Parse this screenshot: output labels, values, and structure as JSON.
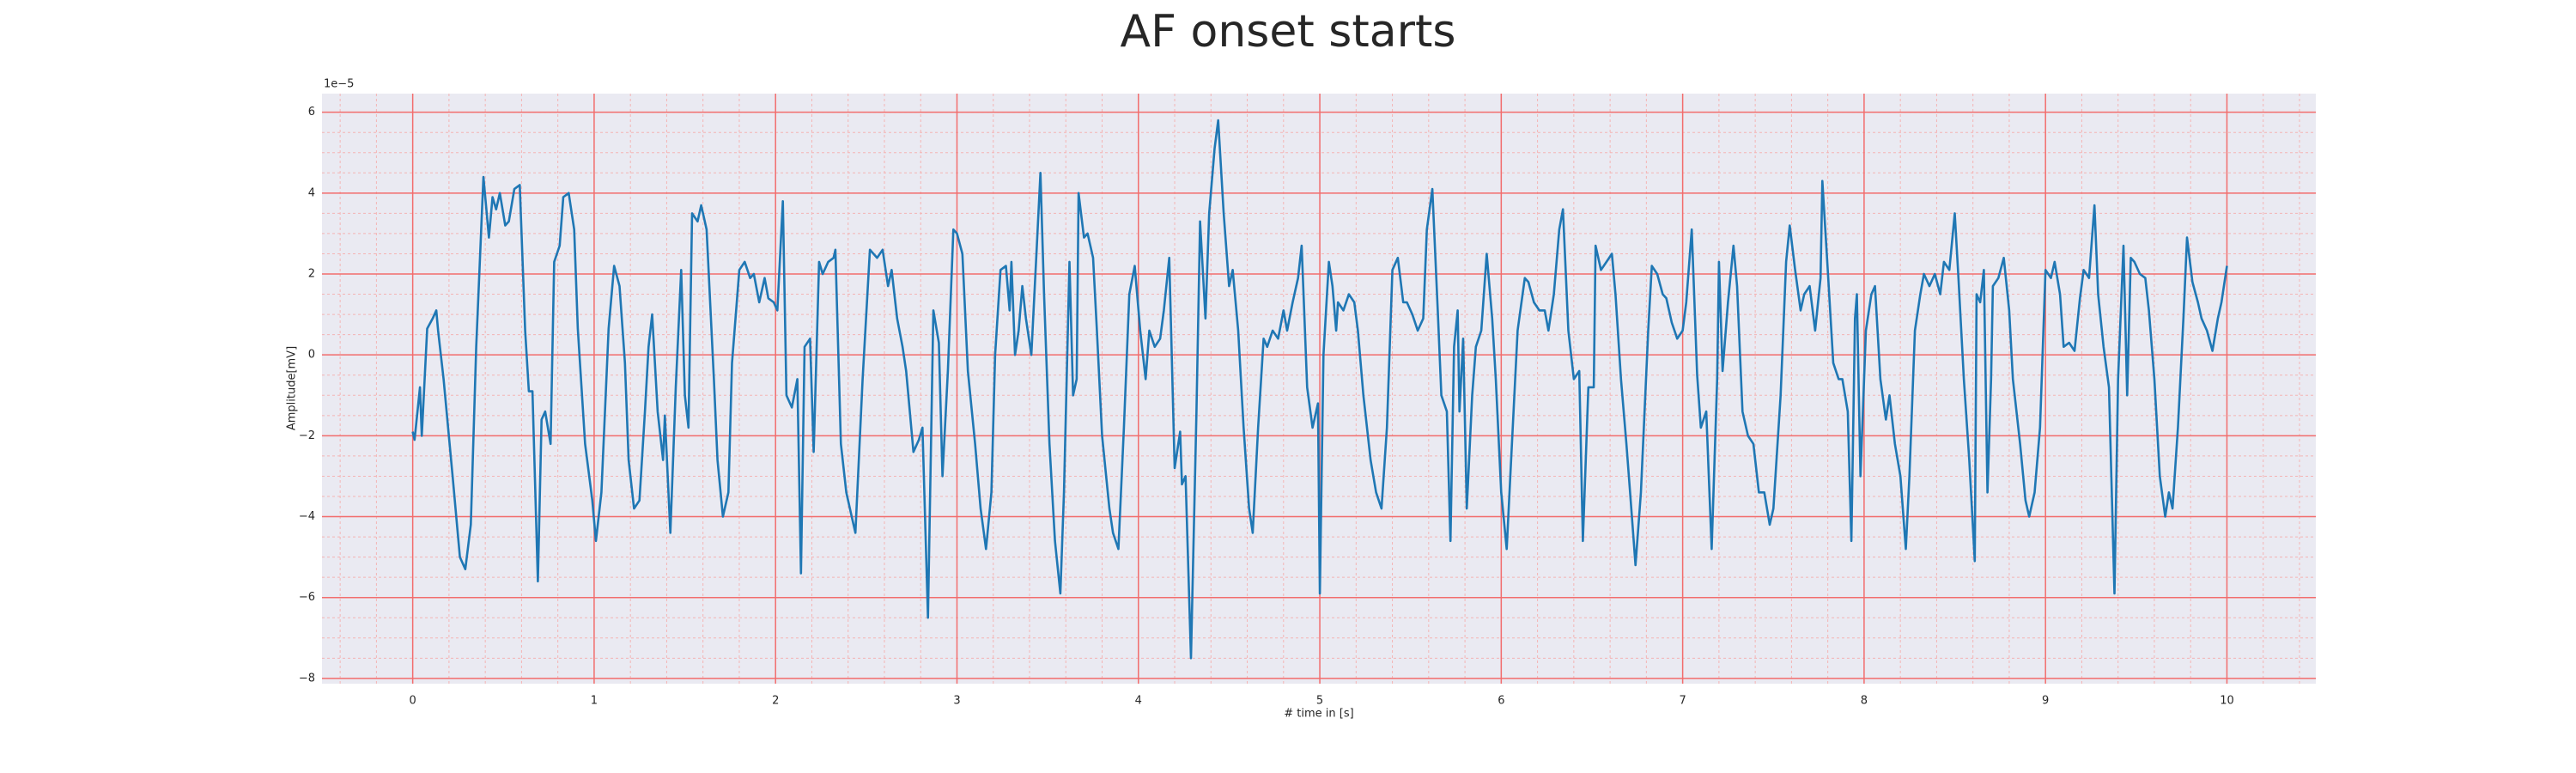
{
  "chart_data": {
    "type": "line",
    "title": "AF onset starts",
    "xlabel": "# time in [s]",
    "ylabel": "Amplitude[mV]",
    "y_offset_text": "1e−5",
    "color": "#1f77b4",
    "grid": true,
    "minor_grid": true,
    "xlim": [
      -0.5,
      10.49
    ],
    "ylim": [
      -8.13,
      6.46
    ],
    "xticks": [
      0,
      1,
      2,
      3,
      4,
      5,
      6,
      7,
      8,
      9,
      10
    ],
    "yticks": [
      {
        "value": -8,
        "label": "−8"
      },
      {
        "value": -6,
        "label": "−6"
      },
      {
        "value": -4,
        "label": "−4"
      },
      {
        "value": -2,
        "label": "−2"
      },
      0,
      2,
      4,
      6
    ],
    "x": [
      0,
      0.01,
      0.04,
      0.05,
      0.08,
      0.11,
      0.13,
      0.14,
      0.17,
      0.22,
      0.26,
      0.29,
      0.32,
      0.35,
      0.39,
      0.42,
      0.44,
      0.46,
      0.48,
      0.51,
      0.53,
      0.56,
      0.59,
      0.62,
      0.64,
      0.66,
      0.69,
      0.71,
      0.73,
      0.76,
      0.78,
      0.81,
      0.83,
      0.86,
      0.89,
      0.91,
      0.95,
      0.99,
      1.01,
      1.04,
      1.08,
      1.11,
      1.14,
      1.17,
      1.19,
      1.22,
      1.25,
      1.28,
      1.3,
      1.32,
      1.35,
      1.38,
      1.39,
      1.42,
      1.45,
      1.48,
      1.5,
      1.52,
      1.54,
      1.57,
      1.59,
      1.62,
      1.66,
      1.68,
      1.71,
      1.74,
      1.76,
      1.8,
      1.83,
      1.86,
      1.88,
      1.91,
      1.94,
      1.96,
      1.99,
      2.01,
      2.04,
      2.06,
      2.09,
      2.12,
      2.14,
      2.16,
      2.19,
      2.21,
      2.24,
      2.26,
      2.29,
      2.32,
      2.33,
      2.36,
      2.39,
      2.42,
      2.44,
      2.48,
      2.52,
      2.56,
      2.59,
      2.62,
      2.64,
      2.67,
      2.7,
      2.72,
      2.76,
      2.79,
      2.81,
      2.84,
      2.87,
      2.9,
      2.92,
      2.95,
      2.98,
      3.0,
      3.03,
      3.06,
      3.1,
      3.13,
      3.16,
      3.19,
      3.21,
      3.24,
      3.27,
      3.29,
      3.3,
      3.32,
      3.34,
      3.36,
      3.38,
      3.41,
      3.44,
      3.46,
      3.48,
      3.51,
      3.54,
      3.57,
      3.59,
      3.62,
      3.64,
      3.66,
      3.67,
      3.7,
      3.72,
      3.75,
      3.77,
      3.8,
      3.84,
      3.86,
      3.89,
      3.92,
      3.95,
      3.98,
      4.01,
      4.04,
      4.06,
      4.09,
      4.12,
      4.14,
      4.17,
      4.2,
      4.23,
      4.24,
      4.26,
      4.29,
      4.32,
      4.34,
      4.37,
      4.39,
      4.42,
      4.44,
      4.47,
      4.5,
      4.52,
      4.55,
      4.58,
      4.61,
      4.63,
      4.66,
      4.69,
      4.71,
      4.74,
      4.77,
      4.8,
      4.82,
      4.85,
      4.88,
      4.9,
      4.93,
      4.96,
      4.99,
      5.0,
      5.02,
      5.05,
      5.07,
      5.09,
      5.1,
      5.13,
      5.16,
      5.19,
      5.21,
      5.24,
      5.28,
      5.31,
      5.34,
      5.37,
      5.4,
      5.43,
      5.46,
      5.48,
      5.51,
      5.54,
      5.57,
      5.59,
      5.62,
      5.65,
      5.67,
      5.7,
      5.72,
      5.74,
      5.76,
      5.77,
      5.79,
      5.81,
      5.84,
      5.86,
      5.89,
      5.92,
      5.95,
      5.97,
      6.0,
      6.03,
      6.05,
      6.09,
      6.13,
      6.15,
      6.18,
      6.21,
      6.24,
      6.26,
      6.29,
      6.32,
      6.34,
      6.37,
      6.4,
      6.43,
      6.45,
      6.48,
      6.51,
      6.52,
      6.55,
      6.58,
      6.61,
      6.63,
      6.66,
      6.69,
      6.71,
      6.74,
      6.77,
      6.81,
      6.83,
      6.86,
      6.89,
      6.91,
      6.94,
      6.97,
      7.0,
      7.02,
      7.05,
      7.08,
      7.1,
      7.13,
      7.16,
      7.19,
      7.2,
      7.22,
      7.25,
      7.28,
      7.3,
      7.33,
      7.36,
      7.39,
      7.42,
      7.45,
      7.48,
      7.5,
      7.54,
      7.57,
      7.59,
      7.62,
      7.65,
      7.67,
      7.7,
      7.73,
      7.76,
      7.77,
      7.8,
      7.83,
      7.86,
      7.88,
      7.91,
      7.93,
      7.95,
      7.96,
      7.98,
      8.01,
      8.04,
      8.06,
      8.09,
      8.12,
      8.14,
      8.17,
      8.2,
      8.23,
      8.25,
      8.28,
      8.31,
      8.33,
      8.36,
      8.39,
      8.42,
      8.44,
      8.47,
      8.5,
      8.52,
      8.55,
      8.58,
      8.61,
      8.62,
      8.64,
      8.66,
      8.68,
      8.7,
      8.71,
      8.74,
      8.77,
      8.8,
      8.82,
      8.86,
      8.89,
      8.91,
      8.94,
      8.97,
      9.0,
      9.03,
      9.05,
      9.08,
      9.1,
      9.13,
      9.16,
      9.19,
      9.21,
      9.24,
      9.27,
      9.29,
      9.32,
      9.35,
      9.38,
      9.4,
      9.43,
      9.45,
      9.47,
      9.49,
      9.52,
      9.55,
      9.57,
      9.6,
      9.63,
      9.66,
      9.68,
      9.7,
      9.73,
      9.76,
      9.78,
      9.81,
      9.84,
      9.86,
      9.89,
      9.92,
      9.95,
      9.97,
      10.0
    ],
    "values": [
      -1.9,
      -2.1,
      -0.8,
      -2.0,
      0.65,
      0.9,
      1.1,
      0.6,
      -0.6,
      -3.0,
      -5.0,
      -5.3,
      -4.2,
      0.2,
      4.4,
      2.9,
      3.9,
      3.6,
      4.0,
      3.2,
      3.3,
      4.1,
      4.2,
      0.6,
      -0.9,
      -0.9,
      -5.6,
      -1.6,
      -1.4,
      -2.2,
      2.3,
      2.7,
      3.9,
      4.0,
      3.1,
      0.65,
      -2.2,
      -3.6,
      -4.6,
      -3.4,
      0.65,
      2.2,
      1.7,
      -0.2,
      -2.6,
      -3.8,
      -3.6,
      -1.4,
      0.2,
      1.0,
      -1.4,
      -2.6,
      -1.5,
      -4.4,
      -0.8,
      2.1,
      -1.0,
      -1.8,
      3.5,
      3.3,
      3.7,
      3.1,
      -0.6,
      -2.6,
      -4.0,
      -3.4,
      -0.2,
      2.1,
      2.3,
      1.9,
      2.0,
      1.3,
      1.9,
      1.4,
      1.3,
      1.1,
      3.8,
      -1.0,
      -1.3,
      -0.6,
      -5.4,
      0.2,
      0.4,
      -2.4,
      2.3,
      2.0,
      2.3,
      2.4,
      2.6,
      -2.2,
      -3.4,
      -4.0,
      -4.4,
      -0.6,
      2.6,
      2.4,
      2.6,
      1.7,
      2.1,
      0.9,
      0.2,
      -0.4,
      -2.4,
      -2.1,
      -1.8,
      -6.5,
      1.1,
      0.3,
      -3.0,
      -0.4,
      3.1,
      3.0,
      2.5,
      -0.4,
      -2.2,
      -3.8,
      -4.8,
      -3.4,
      0.0,
      2.1,
      2.2,
      1.1,
      2.3,
      0.0,
      0.6,
      1.7,
      0.9,
      0.0,
      2.7,
      4.5,
      1.5,
      -2.2,
      -4.6,
      -5.9,
      -3.4,
      2.3,
      -1.0,
      -0.6,
      4.0,
      2.9,
      3.0,
      2.4,
      0.7,
      -2.0,
      -3.8,
      -4.4,
      -4.8,
      -1.8,
      1.5,
      2.2,
      0.6,
      -0.6,
      0.6,
      0.2,
      0.4,
      1.1,
      2.4,
      -2.8,
      -1.9,
      -3.2,
      -3.0,
      -7.5,
      -1.4,
      3.3,
      0.9,
      3.5,
      5.1,
      5.8,
      3.5,
      1.7,
      2.1,
      0.6,
      -1.8,
      -3.8,
      -4.4,
      -1.8,
      0.4,
      0.2,
      0.6,
      0.4,
      1.1,
      0.6,
      1.3,
      1.9,
      2.7,
      -0.8,
      -1.8,
      -1.2,
      -5.9,
      0.0,
      2.3,
      1.7,
      0.6,
      1.3,
      1.1,
      1.5,
      1.3,
      0.6,
      -1.0,
      -2.6,
      -3.4,
      -3.8,
      -1.8,
      2.1,
      2.4,
      1.3,
      1.3,
      1.0,
      0.6,
      0.9,
      3.1,
      4.1,
      1.1,
      -1.0,
      -1.4,
      -4.6,
      0.2,
      1.1,
      -1.4,
      0.4,
      -3.8,
      -1.0,
      0.2,
      0.6,
      2.5,
      0.9,
      -0.6,
      -3.4,
      -4.8,
      -3.0,
      0.6,
      1.9,
      1.8,
      1.3,
      1.1,
      1.1,
      0.6,
      1.5,
      3.1,
      3.6,
      0.6,
      -0.6,
      -0.4,
      -4.6,
      -0.8,
      -0.8,
      2.7,
      2.1,
      2.3,
      2.5,
      1.5,
      -0.6,
      -2.2,
      -3.4,
      -5.2,
      -3.4,
      0.6,
      2.2,
      2.0,
      1.5,
      1.4,
      0.8,
      0.4,
      0.6,
      1.3,
      3.1,
      -0.5,
      -1.8,
      -1.4,
      -4.8,
      -0.6,
      2.3,
      -0.4,
      1.3,
      2.7,
      1.7,
      -1.4,
      -2.0,
      -2.2,
      -3.4,
      -3.4,
      -4.2,
      -3.8,
      -1.0,
      2.3,
      3.2,
      2.1,
      1.1,
      1.5,
      1.7,
      0.6,
      1.9,
      4.3,
      2.1,
      -0.2,
      -0.6,
      -0.6,
      -1.4,
      -4.6,
      0.9,
      1.5,
      -3.0,
      0.6,
      1.5,
      1.7,
      -0.6,
      -1.6,
      -1.0,
      -2.2,
      -3.0,
      -4.8,
      -3.0,
      0.6,
      1.5,
      2.0,
      1.7,
      2.0,
      1.5,
      2.3,
      2.1,
      3.5,
      1.9,
      -0.6,
      -2.6,
      -5.1,
      1.5,
      1.3,
      2.1,
      -3.4,
      -0.6,
      1.7,
      1.9,
      2.4,
      1.1,
      -0.6,
      -2.2,
      -3.6,
      -4.0,
      -3.4,
      -1.8,
      2.1,
      1.9,
      2.3,
      1.5,
      0.2,
      0.3,
      0.1,
      1.4,
      2.1,
      1.9,
      3.7,
      1.5,
      0.2,
      -0.8,
      -5.9,
      -0.6,
      2.7,
      -1.0,
      2.4,
      2.3,
      2.0,
      1.9,
      1.1,
      -0.6,
      -3.0,
      -4.0,
      -3.4,
      -3.8,
      -1.8,
      0.9,
      2.9,
      1.8,
      1.3,
      0.9,
      0.6,
      0.1,
      0.9,
      1.3,
      2.2
    ]
  }
}
